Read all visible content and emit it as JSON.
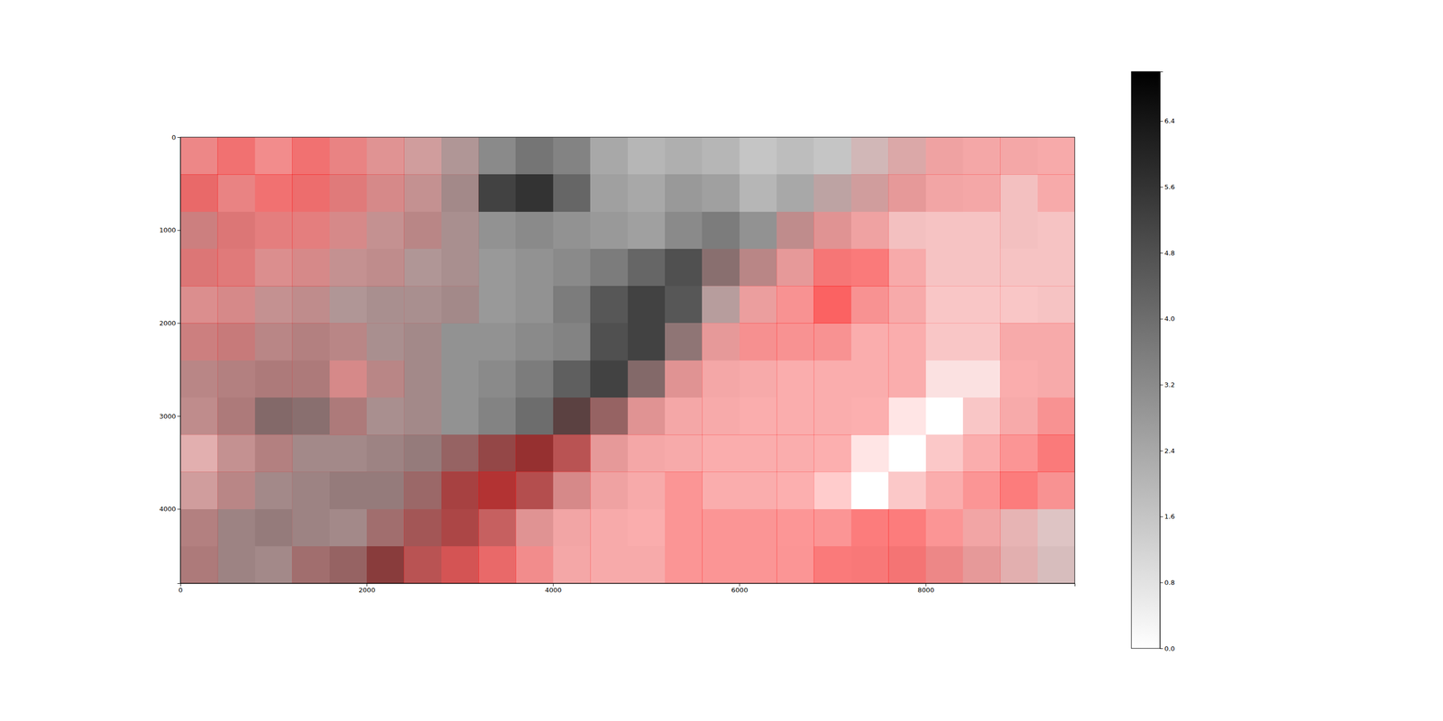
{
  "chart_data": {
    "type": "heatmap",
    "xlim": [
      0,
      9600
    ],
    "ylim": [
      4800,
      0
    ],
    "xticks": [
      0,
      2000,
      4000,
      6000,
      8000
    ],
    "yticks": [
      0,
      1000,
      2000,
      3000,
      4000
    ],
    "cells": [
      [
        0.8,
        0.8,
        0.6,
        0.8,
        1.0,
        1.2,
        1.6,
        2.4,
        3.2,
        3.8,
        3.4,
        2.4,
        2.0,
        2.2,
        2.0,
        1.6,
        1.8,
        1.6,
        1.4,
        1.2,
        0.6,
        0.4,
        0.4,
        0.3
      ],
      [
        1.2,
        1.0,
        0.8,
        1.0,
        1.4,
        1.6,
        2.0,
        2.8,
        5.2,
        5.6,
        4.2,
        2.6,
        2.4,
        2.8,
        2.6,
        2.0,
        2.4,
        2.0,
        1.6,
        1.0,
        0.5,
        0.4,
        0.4,
        0.3
      ],
      [
        2.0,
        1.6,
        1.2,
        1.2,
        1.6,
        2.0,
        2.4,
        2.6,
        3.0,
        3.2,
        3.0,
        2.8,
        2.6,
        3.2,
        3.6,
        3.0,
        2.2,
        1.2,
        0.6,
        0.4,
        0.3,
        0.3,
        0.4,
        0.3
      ],
      [
        1.6,
        1.4,
        1.4,
        1.6,
        2.0,
        2.2,
        2.4,
        2.6,
        2.8,
        3.0,
        3.2,
        3.6,
        4.2,
        4.8,
        3.6,
        2.4,
        1.0,
        0.5,
        0.3,
        0.3,
        0.3,
        0.3,
        0.3,
        0.3
      ],
      [
        1.4,
        1.6,
        2.0,
        2.2,
        2.4,
        2.6,
        2.6,
        2.8,
        2.8,
        3.0,
        3.6,
        4.6,
        5.2,
        4.6,
        2.2,
        0.8,
        0.3,
        0.3,
        0.3,
        0.3,
        0.2,
        0.2,
        0.2,
        0.3
      ],
      [
        2.0,
        2.2,
        2.4,
        2.6,
        2.4,
        2.6,
        2.8,
        3.0,
        3.0,
        3.2,
        3.4,
        4.8,
        5.2,
        3.4,
        1.0,
        0.4,
        0.3,
        0.3,
        0.2,
        0.2,
        0.2,
        0.2,
        0.3,
        0.3
      ],
      [
        2.4,
        2.6,
        2.8,
        2.8,
        1.6,
        2.4,
        2.8,
        3.0,
        3.2,
        3.6,
        4.4,
        5.2,
        3.8,
        1.2,
        0.4,
        0.3,
        0.2,
        0.2,
        0.2,
        0.2,
        0.1,
        0.1,
        0.2,
        0.3
      ],
      [
        2.2,
        2.8,
        3.8,
        3.6,
        2.8,
        2.6,
        2.8,
        3.0,
        3.4,
        4.0,
        5.0,
        3.6,
        1.2,
        0.4,
        0.3,
        0.2,
        0.2,
        0.2,
        0.1,
        0.0,
        0.0,
        0.2,
        0.3,
        0.3
      ],
      [
        1.0,
        2.0,
        2.6,
        2.8,
        2.8,
        3.0,
        3.2,
        3.6,
        4.2,
        4.8,
        3.2,
        1.0,
        0.4,
        0.3,
        0.2,
        0.2,
        0.2,
        0.1,
        0.0,
        0.0,
        0.1,
        0.2,
        0.2,
        0.3
      ],
      [
        1.6,
        2.4,
        2.8,
        3.0,
        3.2,
        3.2,
        3.4,
        4.0,
        4.2,
        3.4,
        1.6,
        0.6,
        0.3,
        0.2,
        0.2,
        0.2,
        0.1,
        0.0,
        0.0,
        0.1,
        0.2,
        0.2,
        0.2,
        0.3
      ],
      [
        2.6,
        3.0,
        3.2,
        3.0,
        2.8,
        3.2,
        3.6,
        3.8,
        2.6,
        1.2,
        0.5,
        0.3,
        0.2,
        0.2,
        0.2,
        0.2,
        0.1,
        0.2,
        0.2,
        0.2,
        0.2,
        0.5,
        0.8,
        1.0
      ],
      [
        2.8,
        3.0,
        2.8,
        3.2,
        3.6,
        4.6,
        3.2,
        2.4,
        1.2,
        0.6,
        0.4,
        0.3,
        0.3,
        0.2,
        0.2,
        0.2,
        0.2,
        0.3,
        0.4,
        0.6,
        0.8,
        1.0,
        1.0,
        1.2
      ]
    ],
    "red_fraction": [
      [
        0.4,
        0.5,
        0.4,
        0.5,
        0.4,
        0.3,
        0.2,
        0.1,
        0.0,
        0.0,
        0.0,
        0.0,
        0.0,
        0.0,
        0.0,
        0.0,
        0.0,
        0.0,
        0.1,
        0.2,
        0.3,
        0.3,
        0.3,
        0.3
      ],
      [
        0.5,
        0.4,
        0.5,
        0.5,
        0.4,
        0.3,
        0.2,
        0.1,
        0.0,
        0.0,
        0.0,
        0.0,
        0.0,
        0.0,
        0.0,
        0.0,
        0.0,
        0.1,
        0.2,
        0.3,
        0.3,
        0.3,
        0.2,
        0.3
      ],
      [
        0.3,
        0.4,
        0.4,
        0.4,
        0.3,
        0.2,
        0.2,
        0.1,
        0.0,
        0.0,
        0.0,
        0.0,
        0.0,
        0.0,
        0.0,
        0.0,
        0.2,
        0.3,
        0.3,
        0.2,
        0.2,
        0.2,
        0.2,
        0.2
      ],
      [
        0.4,
        0.4,
        0.3,
        0.3,
        0.2,
        0.2,
        0.1,
        0.1,
        0.0,
        0.0,
        0.0,
        0.0,
        0.0,
        0.0,
        0.1,
        0.2,
        0.3,
        0.5,
        0.5,
        0.3,
        0.2,
        0.2,
        0.2,
        0.2
      ],
      [
        0.3,
        0.3,
        0.2,
        0.2,
        0.1,
        0.1,
        0.1,
        0.1,
        0.0,
        0.0,
        0.0,
        0.0,
        0.0,
        0.0,
        0.1,
        0.3,
        0.4,
        0.6,
        0.4,
        0.3,
        0.2,
        0.2,
        0.2,
        0.2
      ],
      [
        0.3,
        0.3,
        0.2,
        0.2,
        0.2,
        0.1,
        0.1,
        0.0,
        0.0,
        0.0,
        0.0,
        0.0,
        0.0,
        0.1,
        0.3,
        0.4,
        0.4,
        0.4,
        0.3,
        0.3,
        0.2,
        0.2,
        0.3,
        0.3
      ],
      [
        0.2,
        0.2,
        0.2,
        0.2,
        0.3,
        0.2,
        0.1,
        0.0,
        0.0,
        0.0,
        0.0,
        0.0,
        0.1,
        0.3,
        0.3,
        0.3,
        0.3,
        0.3,
        0.3,
        0.3,
        0.1,
        0.1,
        0.3,
        0.3
      ],
      [
        0.2,
        0.2,
        0.1,
        0.1,
        0.2,
        0.1,
        0.1,
        0.0,
        0.0,
        0.0,
        0.1,
        0.2,
        0.3,
        0.3,
        0.3,
        0.3,
        0.3,
        0.3,
        0.3,
        0.1,
        0.0,
        0.2,
        0.3,
        0.4
      ],
      [
        0.2,
        0.2,
        0.2,
        0.1,
        0.1,
        0.1,
        0.1,
        0.2,
        0.3,
        0.4,
        0.4,
        0.3,
        0.3,
        0.3,
        0.3,
        0.3,
        0.3,
        0.3,
        0.1,
        0.0,
        0.2,
        0.3,
        0.4,
        0.5
      ],
      [
        0.2,
        0.2,
        0.1,
        0.1,
        0.1,
        0.1,
        0.2,
        0.4,
        0.5,
        0.4,
        0.3,
        0.3,
        0.3,
        0.4,
        0.3,
        0.3,
        0.3,
        0.2,
        0.0,
        0.2,
        0.3,
        0.4,
        0.5,
        0.4
      ],
      [
        0.2,
        0.1,
        0.1,
        0.1,
        0.1,
        0.2,
        0.3,
        0.4,
        0.4,
        0.3,
        0.3,
        0.3,
        0.3,
        0.4,
        0.4,
        0.4,
        0.4,
        0.4,
        0.5,
        0.5,
        0.4,
        0.3,
        0.2,
        0.1
      ],
      [
        0.2,
        0.1,
        0.1,
        0.2,
        0.2,
        0.3,
        0.4,
        0.5,
        0.5,
        0.4,
        0.3,
        0.3,
        0.3,
        0.4,
        0.4,
        0.4,
        0.4,
        0.5,
        0.5,
        0.5,
        0.4,
        0.3,
        0.2,
        0.1
      ]
    ],
    "colorbar_range": [
      0,
      7.0
    ],
    "colorbar_ticks": [
      {
        "value": 0,
        "label": "0.0"
      },
      {
        "value": 0.8,
        "label": "0.8"
      },
      {
        "value": 1.6,
        "label": "1.6"
      },
      {
        "value": 2.4,
        "label": "2.4"
      },
      {
        "value": 3.2,
        "label": "3.2"
      },
      {
        "value": 4,
        "label": "4.0"
      },
      {
        "value": 4.8,
        "label": "4.8"
      },
      {
        "value": 5.6,
        "label": "5.6"
      },
      {
        "value": 6.4,
        "label": "6.4"
      }
    ]
  }
}
